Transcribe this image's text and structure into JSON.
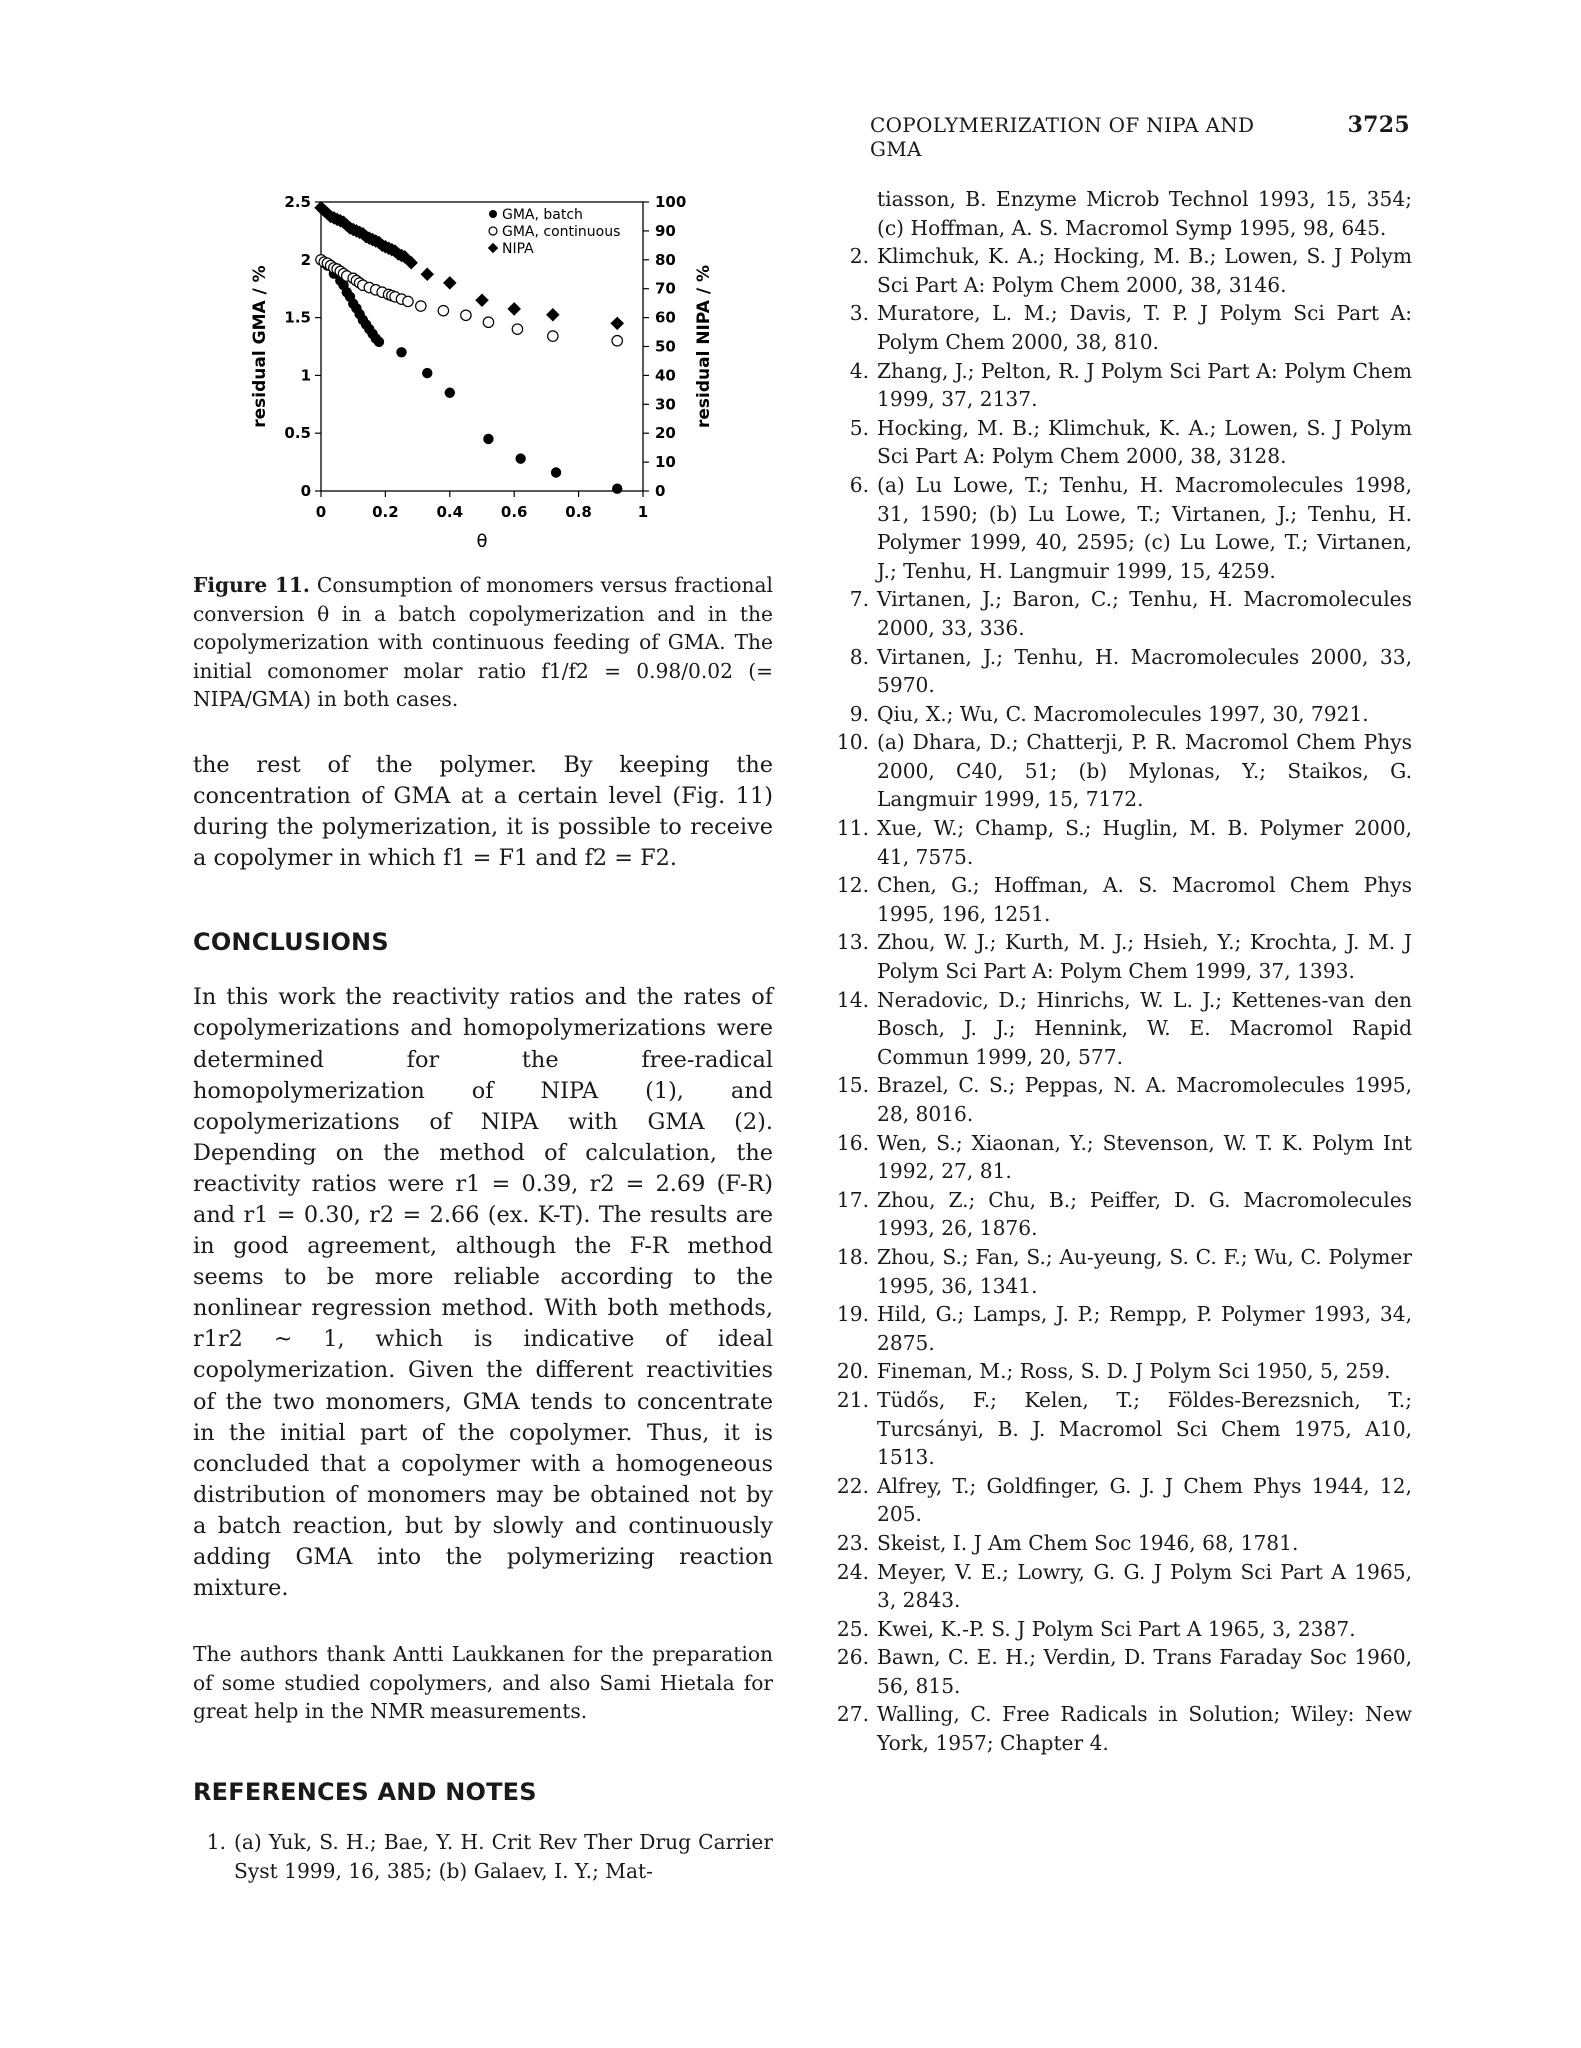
{
  "running_head": {
    "title": "COPOLYMERIZATION OF NIPA AND GMA",
    "page": "3725"
  },
  "chart_data": {
    "type": "scatter",
    "xlabel": "θ",
    "ylabel_left": "residual GMA / %",
    "ylabel_right": "residual NIPA / %",
    "xlim": [
      0,
      1
    ],
    "ylim_left": [
      0,
      2.5
    ],
    "ylim_right": [
      0,
      100
    ],
    "x_ticks": [
      "0",
      "0.2",
      "0.4",
      "0.6",
      "0.8",
      "1"
    ],
    "y_left_ticks": [
      "0",
      "0.5",
      "1",
      "1.5",
      "2",
      "2.5"
    ],
    "y_right_ticks": [
      "0",
      "10",
      "20",
      "30",
      "40",
      "50",
      "60",
      "70",
      "80",
      "90",
      "100"
    ],
    "legend_position": "top-right",
    "series": [
      {
        "name": "GMA, batch",
        "marker": "filled-circle",
        "axis": "left",
        "x": [
          0.0,
          0.02,
          0.04,
          0.06,
          0.07,
          0.08,
          0.09,
          0.1,
          0.11,
          0.12,
          0.13,
          0.14,
          0.15,
          0.16,
          0.17,
          0.18,
          0.25,
          0.33,
          0.4,
          0.52,
          0.62,
          0.73,
          0.92
        ],
        "y": [
          2.0,
          1.95,
          1.88,
          1.82,
          1.78,
          1.72,
          1.68,
          1.62,
          1.58,
          1.53,
          1.48,
          1.44,
          1.4,
          1.36,
          1.32,
          1.29,
          1.2,
          1.02,
          0.85,
          0.45,
          0.28,
          0.16,
          0.02
        ]
      },
      {
        "name": "GMA, continuous",
        "marker": "open-circle",
        "axis": "left",
        "x": [
          0.0,
          0.01,
          0.02,
          0.03,
          0.04,
          0.05,
          0.06,
          0.07,
          0.08,
          0.1,
          0.11,
          0.12,
          0.13,
          0.15,
          0.17,
          0.19,
          0.21,
          0.22,
          0.23,
          0.25,
          0.27,
          0.31,
          0.38,
          0.45,
          0.52,
          0.61,
          0.72,
          0.92
        ],
        "y": [
          2.0,
          1.98,
          1.97,
          1.95,
          1.93,
          1.92,
          1.9,
          1.88,
          1.86,
          1.84,
          1.82,
          1.8,
          1.78,
          1.76,
          1.74,
          1.72,
          1.7,
          1.69,
          1.68,
          1.66,
          1.64,
          1.6,
          1.56,
          1.52,
          1.46,
          1.4,
          1.34,
          1.3
        ]
      },
      {
        "name": "NIPA",
        "marker": "filled-diamond",
        "axis": "right",
        "x": [
          0.0,
          0.01,
          0.02,
          0.03,
          0.04,
          0.05,
          0.06,
          0.07,
          0.08,
          0.09,
          0.1,
          0.11,
          0.12,
          0.13,
          0.14,
          0.15,
          0.16,
          0.17,
          0.18,
          0.19,
          0.2,
          0.21,
          0.22,
          0.23,
          0.24,
          0.25,
          0.26,
          0.28,
          0.33,
          0.4,
          0.5,
          0.6,
          0.72,
          0.92
        ],
        "y": [
          98,
          97,
          96,
          95,
          94.5,
          94,
          93.5,
          93,
          92,
          91,
          90.5,
          90,
          89.5,
          89,
          88,
          87.5,
          87,
          86.5,
          86,
          85,
          84.5,
          84,
          83.5,
          83,
          82,
          81.5,
          81,
          79,
          75,
          72,
          66,
          63,
          61,
          58
        ]
      }
    ]
  },
  "figure_caption": {
    "label": "Figure 11.",
    "text": "Consumption of monomers versus fractional conversion θ in a batch copolymerization and in the copolymerization with continuous feeding of GMA. The initial comonomer molar ratio f1/f2 = 0.98/0.02 (= NIPA/GMA) in both cases."
  },
  "body_paragraph": "the rest of the polymer. By keeping the concentration of GMA at a certain level (Fig. 11) during the polymerization, it is possible to receive a copolymer in which f1 = F1 and f2 = F2.",
  "conclusions": {
    "heading": "CONCLUSIONS",
    "text": "In this work the reactivity ratios and the rates of copolymerizations and homopolymerizations were determined for the free-radical homopolymerization of NIPA (1), and copolymerizations of NIPA with GMA (2). Depending on the method of calculation, the reactivity ratios were r1 = 0.39, r2 = 2.69 (F-R) and r1 = 0.30, r2 = 2.66 (ex. K-T). The results are in good agreement, although the F-R method seems to be more reliable according to the nonlinear regression method. With both methods, r1r2 ~ 1, which is indicative of ideal copolymerization. Given the different reactivities of the two monomers, GMA tends to concentrate in the initial part of the copolymer. Thus, it is concluded that a copolymer with a homogeneous distribution of monomers may be obtained not by a batch reaction, but by slowly and continuously adding GMA into the polymerizing reaction mixture."
  },
  "acknowledgment": "The authors thank Antti Laukkanen for the preparation of some studied copolymers, and also Sami Hietala for great help in the NMR measurements.",
  "references": {
    "heading": "REFERENCES AND NOTES",
    "ref1_left": "(a) Yuk, S. H.; Bae, Y. H. Crit Rev Ther Drug Carrier Syst 1999, 16, 385; (b) Galaev, I. Y.; Mat-",
    "ref1_right": "tiasson, B. Enzyme Microb Technol 1993, 15, 354; (c) Hoffman, A. S. Macromol Symp 1995, 98, 645.",
    "items": [
      {
        "num": "1.",
        "text": ""
      },
      {
        "num": "2.",
        "text": "Klimchuk, K. A.; Hocking, M. B.; Lowen, S. J Polym Sci Part A: Polym Chem 2000, 38, 3146."
      },
      {
        "num": "3.",
        "text": "Muratore, L. M.; Davis, T. P. J Polym Sci Part A: Polym Chem 2000, 38, 810."
      },
      {
        "num": "4.",
        "text": "Zhang, J.; Pelton, R. J Polym Sci Part A: Polym Chem 1999, 37, 2137."
      },
      {
        "num": "5.",
        "text": "Hocking, M. B.; Klimchuk, K. A.; Lowen, S. J Polym Sci Part A: Polym Chem 2000, 38, 3128."
      },
      {
        "num": "6.",
        "text": "(a) Lu Lowe, T.; Tenhu, H. Macromolecules 1998, 31, 1590; (b) Lu Lowe, T.; Virtanen, J.; Tenhu, H. Polymer 1999, 40, 2595; (c) Lu Lowe, T.; Virtanen, J.; Tenhu, H. Langmuir 1999, 15, 4259."
      },
      {
        "num": "7.",
        "text": "Virtanen, J.; Baron, C.; Tenhu, H. Macromolecules 2000, 33, 336."
      },
      {
        "num": "8.",
        "text": "Virtanen, J.; Tenhu, H. Macromolecules 2000, 33, 5970."
      },
      {
        "num": "9.",
        "text": "Qiu, X.; Wu, C. Macromolecules 1997, 30, 7921."
      },
      {
        "num": "10.",
        "text": "(a) Dhara, D.; Chatterji, P. R. Macromol Chem Phys 2000, C40, 51; (b) Mylonas, Y.; Staikos, G. Langmuir 1999, 15, 7172."
      },
      {
        "num": "11.",
        "text": "Xue, W.; Champ, S.; Huglin, M. B. Polymer 2000, 41, 7575."
      },
      {
        "num": "12.",
        "text": "Chen, G.; Hoffman, A. S. Macromol Chem Phys 1995, 196, 1251."
      },
      {
        "num": "13.",
        "text": "Zhou, W. J.; Kurth, M. J.; Hsieh, Y.; Krochta, J. M. J Polym Sci Part A: Polym Chem 1999, 37, 1393."
      },
      {
        "num": "14.",
        "text": "Neradovic, D.; Hinrichs, W. L. J.; Kettenes-van den Bosch, J. J.; Hennink, W. E. Macromol Rapid Commun 1999, 20, 577."
      },
      {
        "num": "15.",
        "text": "Brazel, C. S.; Peppas, N. A. Macromolecules 1995, 28, 8016."
      },
      {
        "num": "16.",
        "text": "Wen, S.; Xiaonan, Y.; Stevenson, W. T. K. Polym Int 1992, 27, 81."
      },
      {
        "num": "17.",
        "text": "Zhou, Z.; Chu, B.; Peiffer, D. G. Macromolecules 1993, 26, 1876."
      },
      {
        "num": "18.",
        "text": "Zhou, S.; Fan, S.; Au-yeung, S. C. F.; Wu, C. Polymer 1995, 36, 1341."
      },
      {
        "num": "19.",
        "text": "Hild, G.; Lamps, J. P.; Rempp, P. Polymer 1993, 34, 2875."
      },
      {
        "num": "20.",
        "text": "Fineman, M.; Ross, S. D. J Polym Sci 1950, 5, 259."
      },
      {
        "num": "21.",
        "text": "Tüdős, F.; Kelen, T.; Földes-Berezsnich, T.; Turcsányi, B. J. Macromol Sci Chem 1975, A10, 1513."
      },
      {
        "num": "22.",
        "text": "Alfrey, T.; Goldfinger, G. J. J Chem Phys 1944, 12, 205."
      },
      {
        "num": "23.",
        "text": "Skeist, I. J Am Chem Soc 1946, 68, 1781."
      },
      {
        "num": "24.",
        "text": "Meyer, V. E.; Lowry, G. G. J Polym Sci Part A 1965, 3, 2843."
      },
      {
        "num": "25.",
        "text": "Kwei, K.-P. S. J Polym Sci Part A 1965, 3, 2387."
      },
      {
        "num": "26.",
        "text": "Bawn, C. E. H.; Verdin, D. Trans Faraday Soc 1960, 56, 815."
      },
      {
        "num": "27.",
        "text": "Walling, C. Free Radicals in Solution; Wiley: New York, 1957; Chapter 4."
      }
    ]
  }
}
